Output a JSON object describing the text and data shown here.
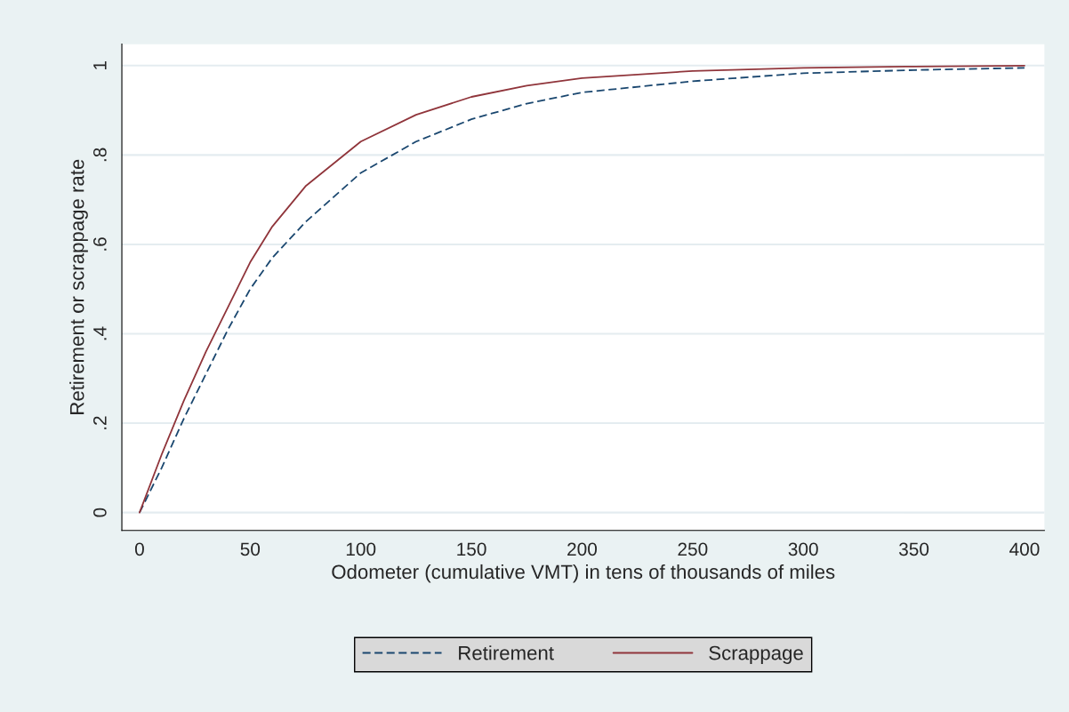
{
  "chart_data": {
    "type": "line",
    "xlabel": "Odometer (cumulative VMT) in tens of thousands of miles",
    "ylabel": "Retirement or scrappage rate",
    "x": [
      0,
      10,
      20,
      30,
      40,
      50,
      60,
      75,
      100,
      125,
      150,
      175,
      200,
      250,
      300,
      350,
      400
    ],
    "series": [
      {
        "name": "Retirement",
        "color": "#1a476f",
        "line_style": "dashed",
        "values": [
          0,
          0.1,
          0.21,
          0.31,
          0.41,
          0.5,
          0.57,
          0.65,
          0.76,
          0.83,
          0.88,
          0.915,
          0.94,
          0.965,
          0.983,
          0.99,
          0.995
        ]
      },
      {
        "name": "Scrappage",
        "color": "#90353b",
        "line_style": "solid",
        "values": [
          0,
          0.13,
          0.25,
          0.36,
          0.46,
          0.56,
          0.64,
          0.73,
          0.83,
          0.89,
          0.93,
          0.955,
          0.972,
          0.988,
          0.995,
          0.998,
          1.0
        ]
      }
    ],
    "xlim": [
      -8,
      409
    ],
    "ylim": [
      -0.04,
      1.048
    ],
    "xticks": [
      0,
      50,
      100,
      150,
      200,
      250,
      300,
      350,
      400
    ],
    "yticks": [
      {
        "value": 0,
        "label": "0"
      },
      {
        "value": 0.2,
        "label": ".2"
      },
      {
        "value": 0.4,
        "label": ".4"
      },
      {
        "value": 0.6,
        "label": ".6"
      },
      {
        "value": 0.8,
        "label": ".8"
      },
      {
        "value": 1,
        "label": "1"
      }
    ],
    "grid": "y",
    "legend": "bottom",
    "marker": "none"
  }
}
